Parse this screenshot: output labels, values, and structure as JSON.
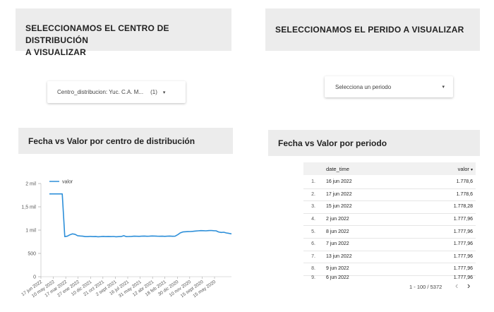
{
  "header_left": {
    "line1": "SELECCIONAMOS EL CENTRO DE DISTRIBUCIÓN",
    "line2": "A VISUALIZAR"
  },
  "header_right": {
    "text": "SELECCIONAMOS EL PERIDO A VISUALIZAR"
  },
  "filter_left": {
    "label": "Centro_distribucion: Yuc. C.A. M...",
    "count": "(1)",
    "caret": "▾"
  },
  "filter_right": {
    "label": "Selecciona un periodo",
    "caret": "▾"
  },
  "chart_title": "Fecha vs Valor por centro de distribución",
  "table_title": "Fecha vs Valor por periodo",
  "chart_data": {
    "type": "line",
    "legend": "valor",
    "yticks": [
      "0",
      "500",
      "1 mil",
      "1,5 mil",
      "2 mil"
    ],
    "ylim": [
      0,
      2000
    ],
    "xticks": [
      "17 jun 2022",
      "10 may 2022",
      "17 mar 2022",
      "27 ene 2022",
      "10 dic 2021",
      "21 oct 2021",
      "2 sept 2021",
      "16 jul 2021",
      "31 may 2021",
      "12 abr 2021",
      "18 feb 2021",
      "30 dic 2020",
      "10 nov 2020",
      "15 sept 2020",
      "15 may 2020"
    ],
    "values": [
      1778,
      1778,
      1778,
      1778,
      1778,
      1778,
      860,
      870,
      900,
      920,
      910,
      880,
      875,
      870,
      860,
      860,
      865,
      860,
      862,
      858,
      860,
      865,
      860,
      862,
      860,
      863,
      858,
      860,
      862,
      880,
      860,
      862,
      865,
      870,
      868,
      866,
      870,
      872,
      868,
      870,
      875,
      872,
      870,
      868,
      870,
      866,
      870,
      872,
      868,
      870,
      900,
      940,
      960,
      965,
      968,
      970,
      975,
      980,
      985,
      990,
      988,
      985,
      990,
      992,
      988,
      985,
      960,
      950,
      955,
      940,
      930,
      920
    ]
  },
  "table": {
    "col_date": "date_time",
    "col_val": "valor",
    "sort_icon": "▾",
    "rows": [
      {
        "idx": "1.",
        "date": "16 jun 2022",
        "val": "1.778,6"
      },
      {
        "idx": "2.",
        "date": "17 jun 2022",
        "val": "1.778,6"
      },
      {
        "idx": "3.",
        "date": "15 jun 2022",
        "val": "1.778,28"
      },
      {
        "idx": "4.",
        "date": "2 jun 2022",
        "val": "1.777,96"
      },
      {
        "idx": "5.",
        "date": "8 jun 2022",
        "val": "1.777,96"
      },
      {
        "idx": "6.",
        "date": "7 jun 2022",
        "val": "1.777,96"
      },
      {
        "idx": "7.",
        "date": "13 jun 2022",
        "val": "1.777,96"
      },
      {
        "idx": "8.",
        "date": "9 jun 2022",
        "val": "1.777,96"
      },
      {
        "idx": "9.",
        "date": "6 jun 2022",
        "val": "1.777,96"
      }
    ],
    "pagination": "1 - 100 / 5372",
    "prev": "‹",
    "next": "›"
  }
}
